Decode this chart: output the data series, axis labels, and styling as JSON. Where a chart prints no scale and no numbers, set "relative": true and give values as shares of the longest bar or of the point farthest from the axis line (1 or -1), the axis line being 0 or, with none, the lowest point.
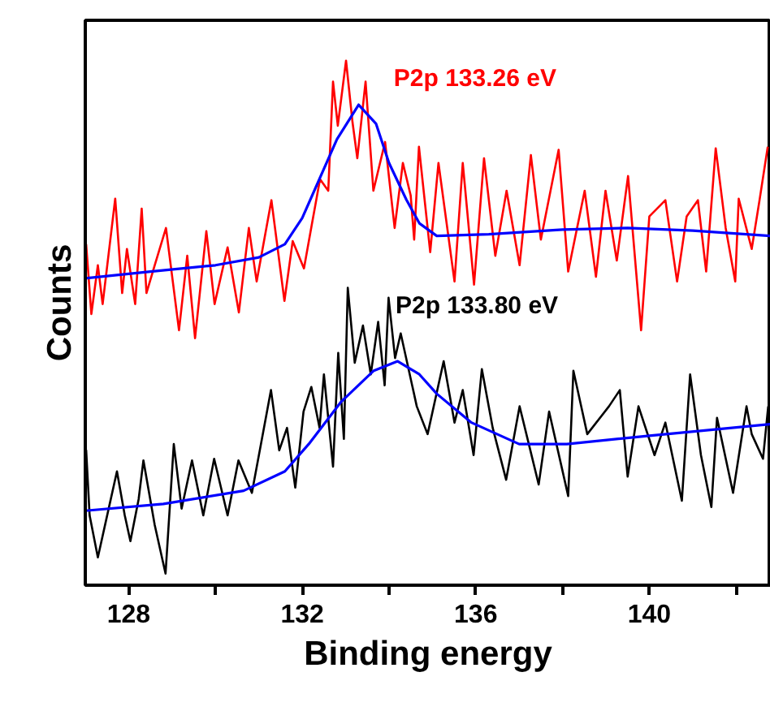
{
  "chart_data": {
    "type": "line",
    "relative": true,
    "xlabel": "Binding energy",
    "ylabel": "Counts",
    "xlim": [
      127.0,
      142.8
    ],
    "xticks": [
      128,
      {
        "value": 130,
        "label": null
      },
      132,
      {
        "value": 134,
        "label": null
      },
      136,
      {
        "value": 138,
        "label": null
      },
      140,
      {
        "value": 142,
        "label": null
      }
    ],
    "grid": false,
    "marker": "none",
    "line_style": "solid",
    "annotations": [
      "P2p 133.26 eV",
      "P2p 133.80 eV"
    ],
    "series": [
      {
        "color": "#ff0000",
        "x": [
          127.02,
          127.14,
          127.29,
          127.4,
          127.69,
          127.85,
          127.96,
          128.15,
          128.3,
          128.41,
          128.6,
          128.86,
          129.16,
          129.35,
          129.53,
          129.79,
          129.98,
          130.28,
          130.54,
          130.77,
          130.95,
          131.29,
          131.59,
          131.78,
          132.04,
          132.22,
          132.41,
          132.6,
          132.71,
          132.82,
          133.01,
          133.16,
          133.27,
          133.46,
          133.64,
          133.91,
          134.13,
          134.32,
          134.5,
          134.58,
          134.69,
          134.95,
          135.14,
          135.51,
          135.7,
          135.96,
          136.19,
          136.45,
          136.71,
          137.01,
          137.27,
          137.5,
          137.91,
          138.13,
          138.51,
          138.77,
          138.99,
          139.25,
          139.51,
          139.81,
          140.0,
          140.37,
          140.64,
          140.86,
          141.12,
          141.31,
          141.53,
          141.76,
          141.98,
          142.06,
          142.36,
          142.54,
          142.73
        ],
        "values": [
          0.65,
          0.517,
          0.61,
          0.536,
          0.737,
          0.557,
          0.641,
          0.536,
          0.718,
          0.557,
          0.61,
          0.681,
          0.486,
          0.628,
          0.471,
          0.675,
          0.536,
          0.644,
          0.52,
          0.681,
          0.579,
          0.734,
          0.542,
          0.656,
          0.604,
          0.687,
          0.774,
          0.752,
          0.96,
          0.876,
          1.0,
          0.882,
          0.814,
          0.96,
          0.752,
          0.845,
          0.681,
          0.805,
          0.743,
          0.659,
          0.836,
          0.635,
          0.805,
          0.579,
          0.805,
          0.573,
          0.814,
          0.628,
          0.752,
          0.61,
          0.82,
          0.659,
          0.83,
          0.598,
          0.752,
          0.588,
          0.752,
          0.619,
          0.78,
          0.486,
          0.703,
          0.734,
          0.579,
          0.703,
          0.734,
          0.598,
          0.833,
          0.681,
          0.579,
          0.737,
          0.641,
          0.734,
          0.836
        ]
      },
      {
        "color": "#0000ff",
        "x": [
          127.0,
          128.5,
          130.0,
          131.0,
          131.6,
          132.0,
          132.4,
          132.8,
          133.3,
          133.7,
          134.0,
          134.4,
          134.7,
          135.1,
          136.3,
          138.0,
          139.5,
          141.0,
          142.8
        ],
        "values": [
          0.585,
          0.598,
          0.61,
          0.625,
          0.65,
          0.7,
          0.775,
          0.85,
          0.916,
          0.88,
          0.805,
          0.735,
          0.69,
          0.666,
          0.669,
          0.678,
          0.681,
          0.676,
          0.666
        ]
      },
      {
        "color": "#000000",
        "x": [
          127.02,
          127.1,
          127.29,
          127.48,
          127.73,
          127.91,
          128.04,
          128.23,
          128.34,
          128.6,
          128.85,
          129.04,
          129.22,
          129.46,
          129.72,
          129.97,
          130.28,
          130.53,
          130.84,
          131.28,
          131.47,
          131.65,
          131.84,
          132.03,
          132.21,
          132.4,
          132.5,
          132.71,
          132.83,
          132.96,
          133.05,
          133.21,
          133.4,
          133.58,
          133.75,
          133.9,
          133.99,
          134.14,
          134.27,
          134.64,
          134.89,
          135.26,
          135.51,
          135.7,
          135.95,
          136.14,
          136.39,
          136.7,
          137.01,
          137.45,
          137.69,
          138.13,
          138.25,
          138.57,
          139.07,
          139.32,
          139.5,
          139.75,
          140.12,
          140.37,
          140.75,
          140.94,
          141.19,
          141.43,
          141.56,
          141.93,
          142.24,
          142.36,
          142.62,
          142.74
        ],
        "values": [
          0.258,
          0.133,
          0.053,
          0.124,
          0.217,
          0.133,
          0.084,
          0.164,
          0.238,
          0.115,
          0.022,
          0.269,
          0.146,
          0.238,
          0.133,
          0.241,
          0.133,
          0.238,
          0.176,
          0.372,
          0.257,
          0.3,
          0.186,
          0.331,
          0.378,
          0.3,
          0.402,
          0.226,
          0.443,
          0.279,
          0.567,
          0.424,
          0.495,
          0.402,
          0.502,
          0.381,
          0.548,
          0.433,
          0.48,
          0.341,
          0.288,
          0.427,
          0.31,
          0.372,
          0.248,
          0.412,
          0.3,
          0.201,
          0.341,
          0.192,
          0.331,
          0.17,
          0.409,
          0.288,
          0.341,
          0.372,
          0.207,
          0.341,
          0.248,
          0.31,
          0.161,
          0.402,
          0.248,
          0.149,
          0.319,
          0.176,
          0.341,
          0.288,
          0.241,
          0.341
        ]
      },
      {
        "color": "#0000ff",
        "x": [
          127.0,
          128.8,
          130.65,
          131.6,
          132.15,
          132.9,
          133.65,
          134.2,
          134.7,
          135.1,
          135.9,
          137.0,
          138.1,
          140.0,
          142.8
        ],
        "values": [
          0.142,
          0.155,
          0.18,
          0.217,
          0.269,
          0.35,
          0.409,
          0.427,
          0.402,
          0.365,
          0.31,
          0.269,
          0.269,
          0.285,
          0.307
        ]
      }
    ]
  }
}
